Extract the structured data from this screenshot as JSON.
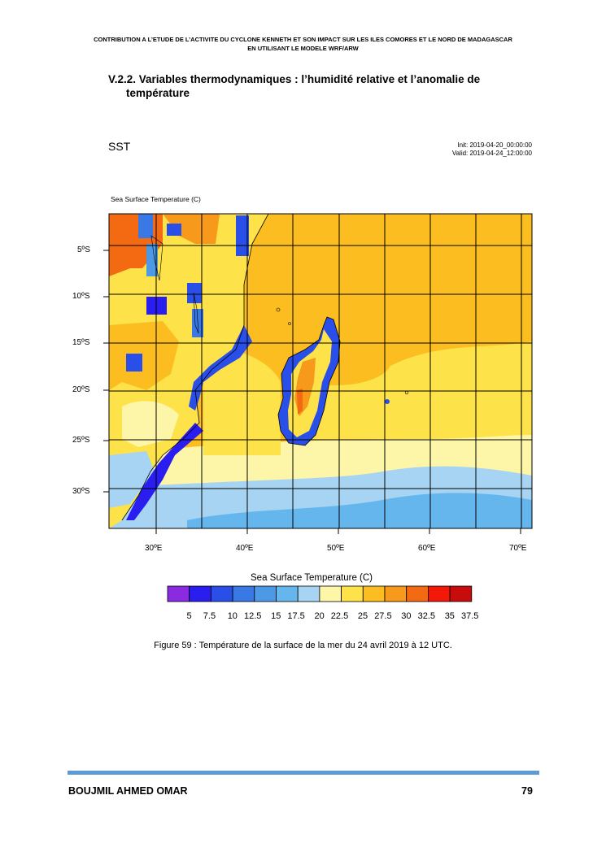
{
  "header": {
    "line1": "CONTRIBUTION A L’ETUDE DE L’ACTIVITE DU CYCLONE KENNETH ET SON IMPACT SUR LES ILES COMORES ET LE NORD DE MADAGASCAR",
    "line2": "EN UTILISANT LE MODELE WRF/ARW"
  },
  "section": {
    "line1": "V.2.2. Variables thermodynamiques : l’humidité relative et l’anomalie de",
    "line2": "température"
  },
  "figure": {
    "title": "SST",
    "init": "Init: 2019-04-20_00:00:00",
    "valid": "Valid: 2019-04-24_12:00:00",
    "field_label": "Sea Surface Temperature   (C)",
    "lat_labels": [
      "5ºS",
      "10ºS",
      "15ºS",
      "20ºS",
      "25ºS",
      "30ºS"
    ],
    "lon_labels": [
      "30ºE",
      "40ºE",
      "50ºE",
      "60ºE",
      "70ºE"
    ],
    "colorbar_title": "Sea Surface Temperature   (C)",
    "colorbar_colors": [
      "#8a2be2",
      "#2a1df0",
      "#2a4fe8",
      "#3a78e6",
      "#4c9ae6",
      "#66b6ee",
      "#a6d4f2",
      "#fdf5a8",
      "#fde24a",
      "#fbbd1f",
      "#f79a1c",
      "#f46a12",
      "#f41808",
      "#c80c0c"
    ],
    "colorbar_labels": [
      "5",
      "7.5",
      "10",
      "12.5",
      "15",
      "17.5",
      "20",
      "22.5",
      "25",
      "27.5",
      "30",
      "32.5",
      "35",
      "37.5"
    ],
    "caption": "Figure 59 : Température de la surface de la mer du 24 avril 2019 à 12 UTC."
  },
  "footer": {
    "author": "BOUJMIL AHMED OMAR",
    "page": "79"
  }
}
